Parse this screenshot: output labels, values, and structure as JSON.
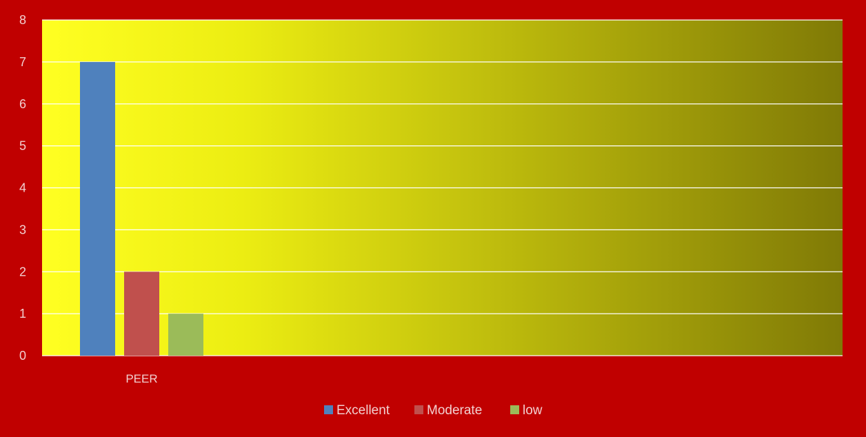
{
  "chart_data": {
    "type": "bar",
    "categories": [
      "PEER"
    ],
    "series": [
      {
        "name": "Excellent",
        "values": [
          7
        ],
        "color": "#4f81bd"
      },
      {
        "name": "Moderate",
        "values": [
          2
        ],
        "color": "#c0504d"
      },
      {
        "name": "low",
        "values": [
          1
        ],
        "color": "#9bbb59"
      }
    ],
    "ylim": [
      0,
      8
    ],
    "yticks": [
      0,
      1,
      2,
      3,
      4,
      5,
      6,
      7,
      8
    ],
    "grid": true,
    "legend_position": "bottom",
    "title": "",
    "xlabel": "",
    "ylabel": ""
  },
  "colors": {
    "outer_background": "#c00000",
    "plot_gradient_start": "#ffff22",
    "plot_gradient_end": "#807a06",
    "gridline": "#ffffff",
    "text": "#f2d0d0"
  }
}
